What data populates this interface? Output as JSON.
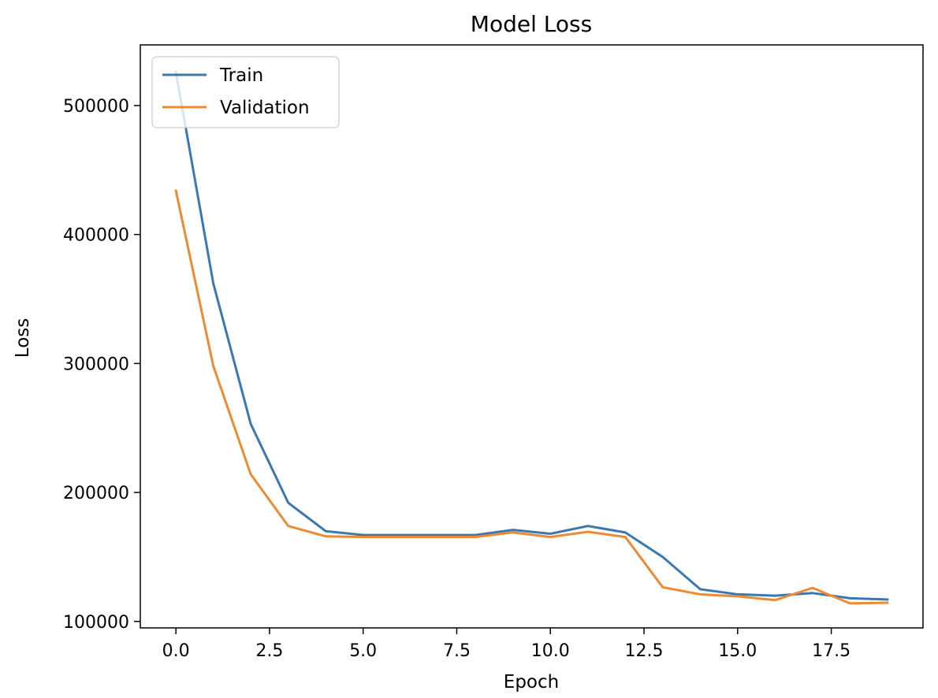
{
  "chart_data": {
    "type": "line",
    "title": "Model Loss",
    "xlabel": "Epoch",
    "ylabel": "Loss",
    "xlim": [
      -0.95,
      19.95
    ],
    "ylim": [
      95000,
      547000
    ],
    "x": [
      0,
      1,
      2,
      3,
      4,
      5,
      6,
      7,
      8,
      9,
      10,
      11,
      12,
      13,
      14,
      15,
      16,
      17,
      18,
      19
    ],
    "xticks": [
      0.0,
      2.5,
      5.0,
      7.5,
      10.0,
      12.5,
      15.0,
      17.5
    ],
    "xtick_labels": [
      "0.0",
      "2.5",
      "5.0",
      "7.5",
      "10.0",
      "12.5",
      "15.0",
      "17.5"
    ],
    "yticks": [
      100000,
      200000,
      300000,
      400000,
      500000
    ],
    "ytick_labels": [
      "100000",
      "200000",
      "300000",
      "400000",
      "500000"
    ],
    "grid": false,
    "legend_position": "upper-left",
    "series": [
      {
        "name": "Train",
        "color": "#3a78b0",
        "values": [
          526000,
          362000,
          253000,
          192000,
          170000,
          167000,
          167000,
          167000,
          167000,
          171000,
          168000,
          174000,
          169000,
          150000,
          125000,
          121000,
          120000,
          122000,
          118000,
          117000
        ]
      },
      {
        "name": "Validation",
        "color": "#ef8a33",
        "values": [
          434000,
          298000,
          214000,
          174000,
          166000,
          165500,
          165500,
          165500,
          165500,
          169000,
          165500,
          169500,
          165500,
          126500,
          121000,
          119500,
          116500,
          126000,
          114000,
          114500
        ]
      }
    ]
  }
}
